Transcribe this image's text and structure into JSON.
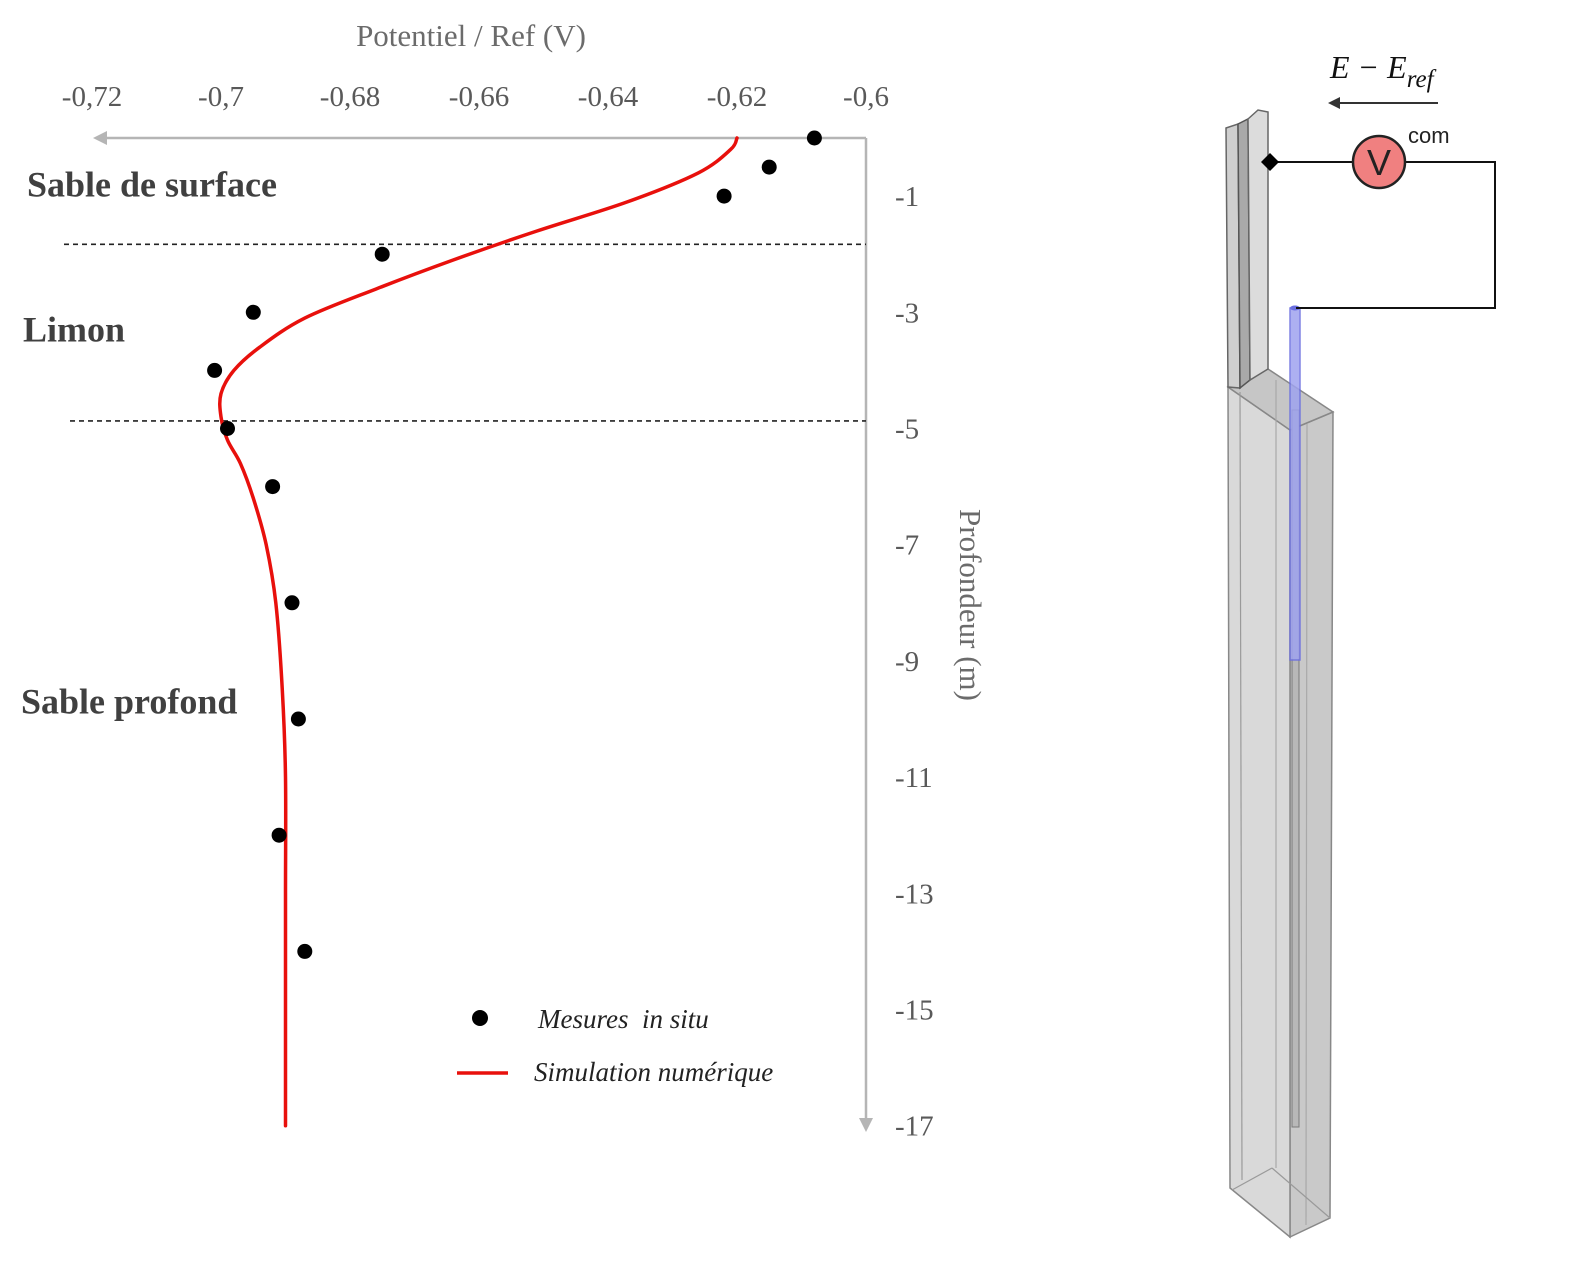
{
  "chart_data": {
    "type": "scatter",
    "title": "",
    "xlabel": "Potentiel  / Ref (V)",
    "ylabel": "Profondeur (m)",
    "xlim": [
      -0.725,
      -0.6
    ],
    "ylim": [
      0,
      -17
    ],
    "x_ticks": [
      "-0,72",
      "-0,7",
      "-0,68",
      "-0,66",
      "-0,64",
      "-0,62",
      "-0,6"
    ],
    "x_tick_values": [
      -0.72,
      -0.7,
      -0.68,
      -0.66,
      -0.64,
      -0.62,
      -0.6
    ],
    "y_ticks": [
      "-1",
      "-3",
      "-5",
      "-7",
      "-9",
      "-11",
      "-13",
      "-15",
      "-17"
    ],
    "y_tick_values": [
      -1,
      -3,
      -5,
      -7,
      -9,
      -11,
      -13,
      -15,
      -17
    ],
    "layer_boundaries": [
      -1.83,
      -4.87
    ],
    "layers": [
      {
        "label": "Sable de surface",
        "depth": -0.8
      },
      {
        "label": "Limon",
        "depth": -3.3
      },
      {
        "label": "Sable profond",
        "depth": -9.7
      }
    ],
    "series": [
      {
        "name": "Mesures  in situ",
        "type": "scatter",
        "color": "#000000",
        "x": [
          -0.608,
          -0.615,
          -0.622,
          -0.675,
          -0.695,
          -0.701,
          -0.699,
          -0.692,
          -0.689,
          -0.688,
          -0.691,
          -0.687
        ],
        "y": [
          0,
          -0.5,
          -1,
          -2,
          -3,
          -4,
          -5,
          -6,
          -8,
          -10,
          -12,
          -14
        ]
      },
      {
        "name": "Simulation numérique",
        "type": "line",
        "color": "#e8100c",
        "x": [
          -0.62,
          -0.621,
          -0.626,
          -0.637,
          -0.651,
          -0.664,
          -0.676,
          -0.687,
          -0.694,
          -0.698,
          -0.7,
          -0.7,
          -0.699,
          -0.697,
          -0.695,
          -0.693,
          -0.6915,
          -0.6905,
          -0.69,
          -0.69,
          -0.69,
          -0.69
        ],
        "y": [
          0,
          -0.2,
          -0.6,
          -1.1,
          -1.6,
          -2.1,
          -2.6,
          -3.1,
          -3.6,
          -4.0,
          -4.4,
          -4.8,
          -5.2,
          -5.6,
          -6.2,
          -7.0,
          -8.0,
          -9.5,
          -11,
          -13,
          -15,
          -17
        ]
      }
    ],
    "legend_position": "bottom-right",
    "grid": false
  },
  "schematic": {
    "equation": "E − E",
    "equation_subscript": "ref",
    "voltmeter_label": "V",
    "terminal_label": "com",
    "voltmeter_color": "#f08080"
  }
}
